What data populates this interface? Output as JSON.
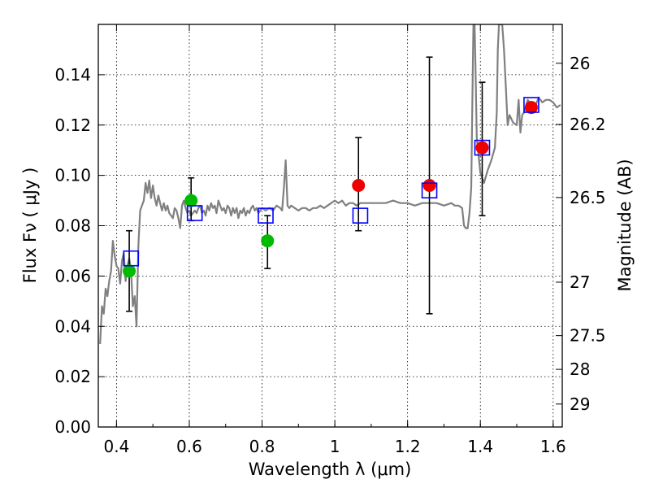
{
  "chart_data": {
    "type": "scatter",
    "xlabel": "Wavelength  λ (μm)",
    "ylabel": "Flux  Fν  ( μJy )",
    "ylabel_right": "Magnitude (AB)",
    "xlim": [
      0.35,
      1.625
    ],
    "ylim": [
      0.0,
      0.16
    ],
    "grid": true,
    "x_ticks": [
      {
        "value": 0.4,
        "label": "0.4"
      },
      {
        "value": 0.6,
        "label": "0.6"
      },
      {
        "value": 0.8,
        "label": "0.8"
      },
      {
        "value": 1.0,
        "label": "1"
      },
      {
        "value": 1.2,
        "label": "1.2"
      },
      {
        "value": 1.4,
        "label": "1.4"
      },
      {
        "value": 1.6,
        "label": "1.6"
      }
    ],
    "y_ticks": [
      {
        "value": 0.0,
        "label": "0.00"
      },
      {
        "value": 0.02,
        "label": "0.02"
      },
      {
        "value": 0.04,
        "label": "0.04"
      },
      {
        "value": 0.06,
        "label": "0.06"
      },
      {
        "value": 0.08,
        "label": "0.08"
      },
      {
        "value": 0.1,
        "label": "0.10"
      },
      {
        "value": 0.12,
        "label": "0.12"
      },
      {
        "value": 0.14,
        "label": "0.14"
      }
    ],
    "right_ticks": [
      {
        "label": "26",
        "mag": 26.0
      },
      {
        "label": "26.2",
        "mag": 26.2
      },
      {
        "label": "26.5",
        "mag": 26.5
      },
      {
        "label": "27",
        "mag": 27.0
      },
      {
        "label": "27.5",
        "mag": 27.5
      },
      {
        "label": "28",
        "mag": 28.0
      },
      {
        "label": "29",
        "mag": 29.0
      }
    ],
    "colors": {
      "model": "#808080",
      "square": "#0000ff",
      "green": "#00bb00",
      "red": "#ee0000",
      "error": "#000000"
    },
    "model_sed": [
      [
        0.355,
        0.033
      ],
      [
        0.36,
        0.048
      ],
      [
        0.365,
        0.045
      ],
      [
        0.37,
        0.055
      ],
      [
        0.375,
        0.052
      ],
      [
        0.38,
        0.058
      ],
      [
        0.385,
        0.062
      ],
      [
        0.39,
        0.074
      ],
      [
        0.395,
        0.068
      ],
      [
        0.4,
        0.064
      ],
      [
        0.405,
        0.063
      ],
      [
        0.41,
        0.057
      ],
      [
        0.415,
        0.066
      ],
      [
        0.42,
        0.069
      ],
      [
        0.425,
        0.058
      ],
      [
        0.43,
        0.064
      ],
      [
        0.435,
        0.067
      ],
      [
        0.44,
        0.062
      ],
      [
        0.445,
        0.048
      ],
      [
        0.45,
        0.052
      ],
      [
        0.455,
        0.04
      ],
      [
        0.46,
        0.072
      ],
      [
        0.465,
        0.086
      ],
      [
        0.47,
        0.088
      ],
      [
        0.475,
        0.09
      ],
      [
        0.48,
        0.097
      ],
      [
        0.485,
        0.093
      ],
      [
        0.49,
        0.098
      ],
      [
        0.495,
        0.091
      ],
      [
        0.5,
        0.096
      ],
      [
        0.505,
        0.091
      ],
      [
        0.51,
        0.088
      ],
      [
        0.515,
        0.092
      ],
      [
        0.52,
        0.089
      ],
      [
        0.525,
        0.086
      ],
      [
        0.53,
        0.089
      ],
      [
        0.535,
        0.086
      ],
      [
        0.54,
        0.088
      ],
      [
        0.545,
        0.085
      ],
      [
        0.55,
        0.084
      ],
      [
        0.555,
        0.083
      ],
      [
        0.56,
        0.087
      ],
      [
        0.565,
        0.086
      ],
      [
        0.57,
        0.083
      ],
      [
        0.575,
        0.079
      ],
      [
        0.58,
        0.088
      ],
      [
        0.585,
        0.09
      ],
      [
        0.59,
        0.087
      ],
      [
        0.595,
        0.085
      ],
      [
        0.6,
        0.086
      ],
      [
        0.605,
        0.084
      ],
      [
        0.61,
        0.085
      ],
      [
        0.615,
        0.086
      ],
      [
        0.62,
        0.085
      ],
      [
        0.625,
        0.087
      ],
      [
        0.63,
        0.088
      ],
      [
        0.635,
        0.085
      ],
      [
        0.64,
        0.086
      ],
      [
        0.645,
        0.084
      ],
      [
        0.65,
        0.088
      ],
      [
        0.655,
        0.086
      ],
      [
        0.66,
        0.089
      ],
      [
        0.665,
        0.087
      ],
      [
        0.67,
        0.088
      ],
      [
        0.675,
        0.085
      ],
      [
        0.68,
        0.09
      ],
      [
        0.685,
        0.088
      ],
      [
        0.69,
        0.086
      ],
      [
        0.695,
        0.087
      ],
      [
        0.7,
        0.085
      ],
      [
        0.705,
        0.088
      ],
      [
        0.71,
        0.087
      ],
      [
        0.715,
        0.084
      ],
      [
        0.72,
        0.087
      ],
      [
        0.725,
        0.085
      ],
      [
        0.73,
        0.087
      ],
      [
        0.735,
        0.083
      ],
      [
        0.74,
        0.086
      ],
      [
        0.745,
        0.085
      ],
      [
        0.75,
        0.087
      ],
      [
        0.755,
        0.084
      ],
      [
        0.76,
        0.086
      ],
      [
        0.765,
        0.085
      ],
      [
        0.77,
        0.087
      ],
      [
        0.775,
        0.088
      ],
      [
        0.78,
        0.086
      ],
      [
        0.785,
        0.087
      ],
      [
        0.79,
        0.085
      ],
      [
        0.795,
        0.086
      ],
      [
        0.8,
        0.087
      ],
      [
        0.81,
        0.086
      ],
      [
        0.82,
        0.087
      ],
      [
        0.83,
        0.086
      ],
      [
        0.84,
        0.088
      ],
      [
        0.85,
        0.087
      ],
      [
        0.855,
        0.086
      ],
      [
        0.86,
        0.095
      ],
      [
        0.865,
        0.106
      ],
      [
        0.87,
        0.088
      ],
      [
        0.875,
        0.087
      ],
      [
        0.88,
        0.088
      ],
      [
        0.89,
        0.087
      ],
      [
        0.9,
        0.086
      ],
      [
        0.91,
        0.087
      ],
      [
        0.92,
        0.087
      ],
      [
        0.93,
        0.086
      ],
      [
        0.94,
        0.087
      ],
      [
        0.95,
        0.087
      ],
      [
        0.96,
        0.088
      ],
      [
        0.97,
        0.087
      ],
      [
        0.98,
        0.088
      ],
      [
        0.99,
        0.089
      ],
      [
        1.0,
        0.09
      ],
      [
        1.01,
        0.089
      ],
      [
        1.02,
        0.09
      ],
      [
        1.03,
        0.088
      ],
      [
        1.04,
        0.089
      ],
      [
        1.05,
        0.089
      ],
      [
        1.06,
        0.088
      ],
      [
        1.07,
        0.089
      ],
      [
        1.08,
        0.089
      ],
      [
        1.09,
        0.089
      ],
      [
        1.1,
        0.089
      ],
      [
        1.12,
        0.089
      ],
      [
        1.14,
        0.089
      ],
      [
        1.16,
        0.09
      ],
      [
        1.18,
        0.089
      ],
      [
        1.2,
        0.089
      ],
      [
        1.22,
        0.088
      ],
      [
        1.24,
        0.089
      ],
      [
        1.26,
        0.089
      ],
      [
        1.28,
        0.089
      ],
      [
        1.3,
        0.088
      ],
      [
        1.32,
        0.089
      ],
      [
        1.33,
        0.088
      ],
      [
        1.34,
        0.088
      ],
      [
        1.35,
        0.087
      ],
      [
        1.355,
        0.08
      ],
      [
        1.36,
        0.079
      ],
      [
        1.365,
        0.079
      ],
      [
        1.37,
        0.085
      ],
      [
        1.375,
        0.095
      ],
      [
        1.378,
        0.13
      ],
      [
        1.381,
        0.16
      ],
      [
        1.384,
        0.16
      ],
      [
        1.387,
        0.14
      ],
      [
        1.39,
        0.115
      ],
      [
        1.395,
        0.108
      ],
      [
        1.4,
        0.101
      ],
      [
        1.41,
        0.097
      ],
      [
        1.42,
        0.102
      ],
      [
        1.43,
        0.106
      ],
      [
        1.44,
        0.111
      ],
      [
        1.445,
        0.125
      ],
      [
        1.448,
        0.15
      ],
      [
        1.451,
        0.16
      ],
      [
        1.455,
        0.16
      ],
      [
        1.46,
        0.16
      ],
      [
        1.465,
        0.15
      ],
      [
        1.47,
        0.135
      ],
      [
        1.475,
        0.12
      ],
      [
        1.48,
        0.124
      ],
      [
        1.49,
        0.121
      ],
      [
        1.5,
        0.12
      ],
      [
        1.505,
        0.13
      ],
      [
        1.51,
        0.117
      ],
      [
        1.515,
        0.124
      ],
      [
        1.52,
        0.125
      ],
      [
        1.53,
        0.13
      ],
      [
        1.54,
        0.128
      ],
      [
        1.55,
        0.127
      ],
      [
        1.56,
        0.131
      ],
      [
        1.57,
        0.129
      ],
      [
        1.58,
        0.13
      ],
      [
        1.59,
        0.13
      ],
      [
        1.6,
        0.129
      ],
      [
        1.61,
        0.127
      ],
      [
        1.62,
        0.128
      ]
    ],
    "errorbars": [
      {
        "x": 0.435,
        "lo": 0.046,
        "hi": 0.078
      },
      {
        "x": 0.605,
        "lo": 0.082,
        "hi": 0.099
      },
      {
        "x": 0.815,
        "lo": 0.063,
        "hi": 0.084
      },
      {
        "x": 1.065,
        "lo": 0.078,
        "hi": 0.115
      },
      {
        "x": 1.26,
        "lo": 0.045,
        "hi": 0.147
      },
      {
        "x": 1.405,
        "lo": 0.084,
        "hi": 0.137
      }
    ],
    "squares": [
      {
        "x": 0.44,
        "y": 0.067
      },
      {
        "x": 0.615,
        "y": 0.085
      },
      {
        "x": 0.81,
        "y": 0.084
      },
      {
        "x": 1.07,
        "y": 0.084
      },
      {
        "x": 1.26,
        "y": 0.094
      },
      {
        "x": 1.405,
        "y": 0.111
      },
      {
        "x": 1.54,
        "y": 0.128
      }
    ],
    "green_points": [
      {
        "x": 0.435,
        "y": 0.062
      },
      {
        "x": 0.605,
        "y": 0.09
      },
      {
        "x": 0.815,
        "y": 0.074
      }
    ],
    "red_points": [
      {
        "x": 1.065,
        "y": 0.096
      },
      {
        "x": 1.26,
        "y": 0.096
      },
      {
        "x": 1.405,
        "y": 0.111
      },
      {
        "x": 1.54,
        "y": 0.127
      }
    ]
  }
}
